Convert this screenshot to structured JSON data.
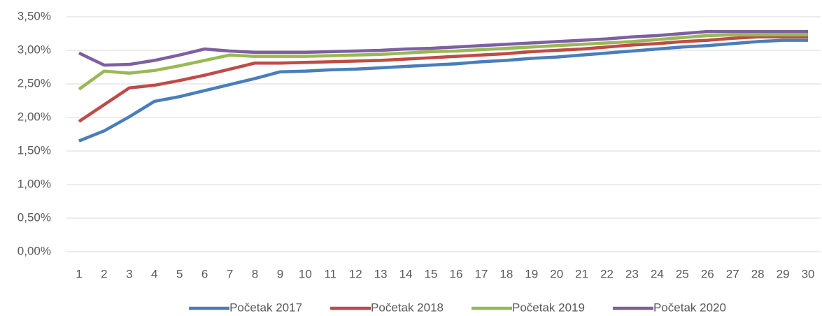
{
  "chart_data": {
    "type": "line",
    "categories": [
      "1",
      "2",
      "3",
      "4",
      "5",
      "6",
      "7",
      "8",
      "9",
      "10",
      "11",
      "12",
      "13",
      "14",
      "15",
      "16",
      "17",
      "18",
      "19",
      "20",
      "21",
      "22",
      "23",
      "24",
      "25",
      "26",
      "27",
      "28",
      "29",
      "30"
    ],
    "series": [
      {
        "name": "Početak 2017",
        "color": "#4a7ebb",
        "values": [
          1.65,
          1.8,
          2.01,
          2.24,
          2.31,
          2.4,
          2.49,
          2.58,
          2.68,
          2.69,
          2.71,
          2.72,
          2.74,
          2.76,
          2.78,
          2.8,
          2.83,
          2.85,
          2.88,
          2.9,
          2.93,
          2.96,
          2.99,
          3.02,
          3.05,
          3.07,
          3.1,
          3.13,
          3.15,
          3.15
        ]
      },
      {
        "name": "Početak 2018",
        "color": "#be4b48",
        "values": [
          1.94,
          2.19,
          2.44,
          2.48,
          2.55,
          2.63,
          2.72,
          2.81,
          2.81,
          2.82,
          2.83,
          2.84,
          2.85,
          2.87,
          2.89,
          2.91,
          2.93,
          2.95,
          2.98,
          3.0,
          3.02,
          3.05,
          3.08,
          3.1,
          3.13,
          3.15,
          3.18,
          3.2,
          3.2,
          3.2
        ]
      },
      {
        "name": "Početak 2019",
        "color": "#98b954",
        "values": [
          2.42,
          2.69,
          2.66,
          2.7,
          2.77,
          2.85,
          2.93,
          2.91,
          2.91,
          2.91,
          2.92,
          2.93,
          2.94,
          2.96,
          2.98,
          2.99,
          3.01,
          3.03,
          3.05,
          3.07,
          3.09,
          3.11,
          3.13,
          3.16,
          3.19,
          3.22,
          3.23,
          3.23,
          3.23,
          3.23
        ]
      },
      {
        "name": "Početak 2020",
        "color": "#7d60a0",
        "values": [
          2.96,
          2.78,
          2.79,
          2.85,
          2.93,
          3.02,
          2.99,
          2.97,
          2.97,
          2.97,
          2.98,
          2.99,
          3.0,
          3.02,
          3.03,
          3.05,
          3.07,
          3.09,
          3.11,
          3.13,
          3.15,
          3.17,
          3.2,
          3.22,
          3.25,
          3.28,
          3.28,
          3.28,
          3.28,
          3.28
        ]
      }
    ],
    "ylim": [
      0,
      3.5
    ],
    "yticks": [
      {
        "value": 0,
        "label": "0,00%"
      },
      {
        "value": 0.5,
        "label": "0,50%"
      },
      {
        "value": 1,
        "label": "1,00%"
      },
      {
        "value": 1.5,
        "label": "1,50%"
      },
      {
        "value": 2,
        "label": "2,00%"
      },
      {
        "value": 2.5,
        "label": "2,50%"
      },
      {
        "value": 3,
        "label": "3,00%"
      },
      {
        "value": 3.5,
        "label": "3,50%"
      }
    ],
    "grid": true,
    "legend": "bottom"
  }
}
